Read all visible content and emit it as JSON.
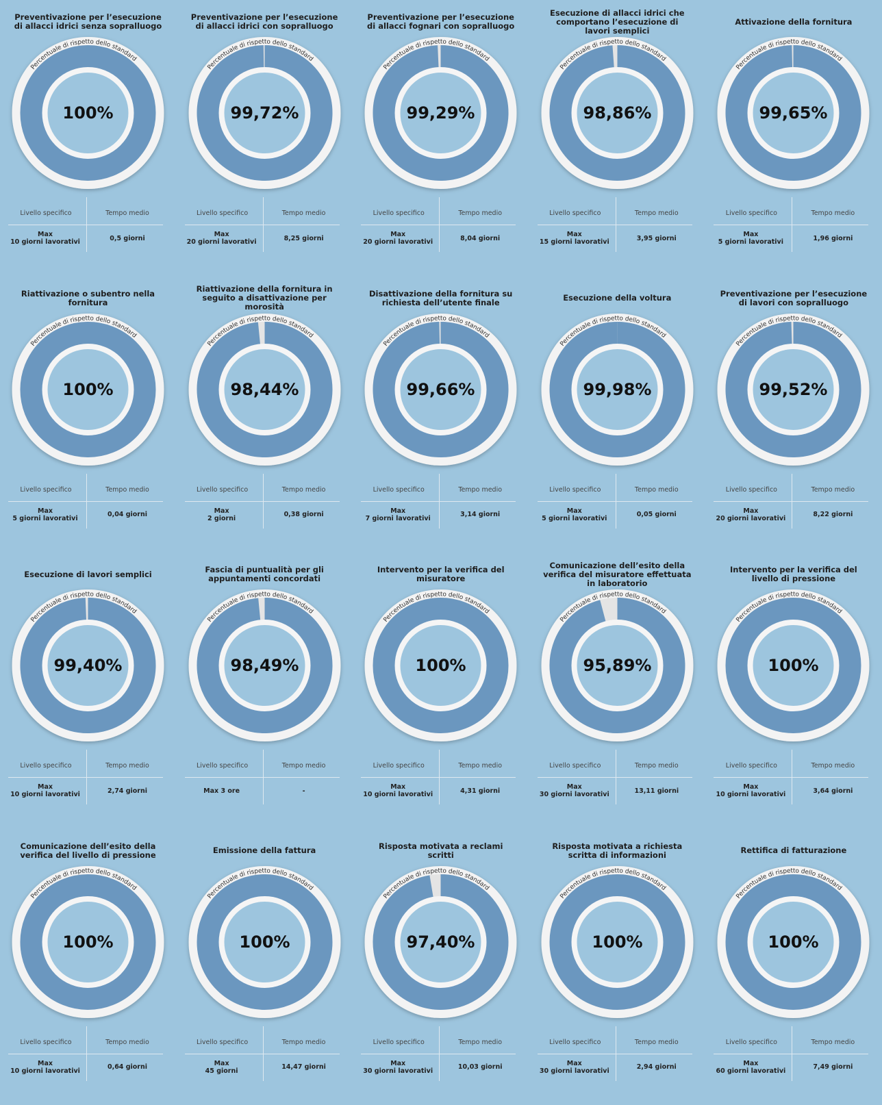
{
  "chart_data": [
    {
      "type": "donut",
      "title": "Preventivazione per l’esecuzione di allacci idrici senza sopralluogo",
      "subtitle": "Percentuale di rispetto dello standard",
      "values": [
        100
      ],
      "value_labels": [
        "100%"
      ],
      "color": "#6b97bf",
      "table": {
        "headers": [
          "Livello specifico",
          "Tempo medio"
        ],
        "cells": [
          [
            "Max",
            "10 giorni lavorativi"
          ],
          [
            "0,5 giorni"
          ]
        ]
      }
    },
    {
      "type": "donut",
      "title": "Preventivazione per l’esecuzione di allacci idrici con sopralluogo",
      "subtitle": "Percentuale di rispetto dello standard",
      "values": [
        99.72
      ],
      "value_labels": [
        "99,72%"
      ],
      "color": "#6b97bf",
      "table": {
        "headers": [
          "Livello specifico",
          "Tempo medio"
        ],
        "cells": [
          [
            "Max",
            "20 giorni lavorativi"
          ],
          [
            "8,25 giorni"
          ]
        ]
      }
    },
    {
      "type": "donut",
      "title": "Preventivazione per l’esecuzione di allacci fognari con sopralluogo",
      "subtitle": "Percentuale di rispetto dello standard",
      "values": [
        99.29
      ],
      "value_labels": [
        "99,29%"
      ],
      "color": "#6b97bf",
      "table": {
        "headers": [
          "Livello specifico",
          "Tempo medio"
        ],
        "cells": [
          [
            "Max",
            "20 giorni lavorativi"
          ],
          [
            "8,04 giorni"
          ]
        ]
      }
    },
    {
      "type": "donut",
      "title": "Esecuzione di allacci idrici che comportano l’esecuzione di lavori semplici",
      "subtitle": "Percentuale di rispetto dello standard",
      "values": [
        98.86
      ],
      "value_labels": [
        "98,86%"
      ],
      "color": "#6b97bf",
      "table": {
        "headers": [
          "Livello specifico",
          "Tempo medio"
        ],
        "cells": [
          [
            "Max",
            "15 giorni lavorativi"
          ],
          [
            "3,95 giorni"
          ]
        ]
      }
    },
    {
      "type": "donut",
      "title": "Attivazione della fornitura",
      "subtitle": "Percentuale di rispetto dello standard",
      "values": [
        99.65
      ],
      "value_labels": [
        "99,65%"
      ],
      "color": "#6b97bf",
      "table": {
        "headers": [
          "Livello specifico",
          "Tempo medio"
        ],
        "cells": [
          [
            "Max",
            "5 giorni lavorativi"
          ],
          [
            "1,96 giorni"
          ]
        ]
      }
    },
    {
      "type": "donut",
      "title": "Riattivazione o subentro nella fornitura",
      "subtitle": "Percentuale di rispetto dello standard",
      "values": [
        100
      ],
      "value_labels": [
        "100%"
      ],
      "color": "#6b97bf",
      "table": {
        "headers": [
          "Livello specifico",
          "Tempo medio"
        ],
        "cells": [
          [
            "Max",
            "5 giorni lavorativi"
          ],
          [
            "0,04 giorni"
          ]
        ]
      }
    },
    {
      "type": "donut",
      "title": "Riattivazione della fornitura in seguito a disattivazione per morosità",
      "subtitle": "Percentuale di rispetto dello standard",
      "values": [
        98.44
      ],
      "value_labels": [
        "98,44%"
      ],
      "color": "#6b97bf",
      "table": {
        "headers": [
          "Livello specifico",
          "Tempo medio"
        ],
        "cells": [
          [
            "Max",
            "2 giorni"
          ],
          [
            "0,38 giorni"
          ]
        ]
      }
    },
    {
      "type": "donut",
      "title": "Disattivazione della fornitura su richiesta dell’utente finale",
      "subtitle": "Percentuale di rispetto dello standard",
      "values": [
        99.66
      ],
      "value_labels": [
        "99,66%"
      ],
      "color": "#6b97bf",
      "table": {
        "headers": [
          "Livello specifico",
          "Tempo medio"
        ],
        "cells": [
          [
            "Max",
            "7 giorni lavorativi"
          ],
          [
            "3,14 giorni"
          ]
        ]
      }
    },
    {
      "type": "donut",
      "title": "Esecuzione della voltura",
      "subtitle": "Percentuale di rispetto dello standard",
      "values": [
        99.98
      ],
      "value_labels": [
        "99,98%"
      ],
      "color": "#6b97bf",
      "table": {
        "headers": [
          "Livello specifico",
          "Tempo medio"
        ],
        "cells": [
          [
            "Max",
            "5 giorni lavorativi"
          ],
          [
            "0,05  giorni"
          ]
        ]
      }
    },
    {
      "type": "donut",
      "title": "Preventivazione per l’esecuzione di lavori con sopralluogo",
      "subtitle": "Percentuale di rispetto dello standard",
      "values": [
        99.52
      ],
      "value_labels": [
        "99,52%"
      ],
      "color": "#6b97bf",
      "table": {
        "headers": [
          "Livello specifico",
          "Tempo medio"
        ],
        "cells": [
          [
            "Max",
            "20 giorni lavorativi"
          ],
          [
            "8,22 giorni"
          ]
        ]
      }
    },
    {
      "type": "donut",
      "title": "Esecuzione di lavori semplici",
      "subtitle": "Percentuale di rispetto dello standard",
      "values": [
        99.4
      ],
      "value_labels": [
        "99,40%"
      ],
      "color": "#6b97bf",
      "table": {
        "headers": [
          "Livello specifico",
          "Tempo medio"
        ],
        "cells": [
          [
            "Max",
            "10 giorni lavorativi"
          ],
          [
            "2,74 giorni"
          ]
        ]
      }
    },
    {
      "type": "donut",
      "title": "Fascia di puntualità per gli appuntamenti concordati",
      "subtitle": "Percentuale di rispetto dello standard",
      "values": [
        98.49
      ],
      "value_labels": [
        "98,49%"
      ],
      "color": "#6b97bf",
      "table": {
        "headers": [
          "Livello specifico",
          "Tempo medio"
        ],
        "cells": [
          [
            "Max 3 ore"
          ],
          [
            "-"
          ]
        ]
      }
    },
    {
      "type": "donut",
      "title": "Intervento per la verifica del misuratore",
      "subtitle": "Percentuale di rispetto dello standard",
      "values": [
        100
      ],
      "value_labels": [
        "100%"
      ],
      "color": "#6b97bf",
      "table": {
        "headers": [
          "Livello specifico",
          "Tempo medio"
        ],
        "cells": [
          [
            "Max",
            "10 giorni lavorativi"
          ],
          [
            "4,31 giorni"
          ]
        ]
      }
    },
    {
      "type": "donut",
      "title": "Comunicazione dell’esito della verifica del misuratore effettuata in laboratorio",
      "subtitle": "Percentuale di rispetto dello standard",
      "values": [
        95.89
      ],
      "value_labels": [
        "95,89%"
      ],
      "color": "#6b97bf",
      "table": {
        "headers": [
          "Livello specifico",
          "Tempo medio"
        ],
        "cells": [
          [
            "Max",
            "30 giorni lavorativi"
          ],
          [
            "13,11 giorni"
          ]
        ]
      }
    },
    {
      "type": "donut",
      "title": "Intervento per la verifica del livello di pressione",
      "subtitle": "Percentuale di rispetto dello standard",
      "values": [
        100
      ],
      "value_labels": [
        "100%"
      ],
      "color": "#6b97bf",
      "table": {
        "headers": [
          "Livello specifico",
          "Tempo medio"
        ],
        "cells": [
          [
            "Max",
            "10 giorni lavorativi"
          ],
          [
            "3,64 giorni"
          ]
        ]
      }
    },
    {
      "type": "donut",
      "title": "Comunicazione dell’esito della verifica del livello di pressione",
      "subtitle": "Percentuale di rispetto dello standard",
      "values": [
        100
      ],
      "value_labels": [
        "100%"
      ],
      "color": "#6b97bf",
      "table": {
        "headers": [
          "Livello specifico",
          "Tempo medio"
        ],
        "cells": [
          [
            "Max",
            "10 giorni lavorativi"
          ],
          [
            "0,64 giorni"
          ]
        ]
      }
    },
    {
      "type": "donut",
      "title": "Emissione della fattura",
      "subtitle": "Percentuale di rispetto dello standard",
      "values": [
        100
      ],
      "value_labels": [
        "100%"
      ],
      "color": "#6b97bf",
      "table": {
        "headers": [
          "Livello specifico",
          "Tempo medio"
        ],
        "cells": [
          [
            "Max",
            "45 giorni"
          ],
          [
            "14,47 giorni"
          ]
        ]
      }
    },
    {
      "type": "donut",
      "title": "Risposta motivata a reclami scritti",
      "subtitle": "Percentuale di rispetto dello standard",
      "values": [
        97.4
      ],
      "value_labels": [
        "97,40%"
      ],
      "color": "#6b97bf",
      "table": {
        "headers": [
          "Livello specifico",
          "Tempo medio"
        ],
        "cells": [
          [
            "Max",
            "30 giorni lavorativi"
          ],
          [
            "10,03 giorni"
          ]
        ]
      }
    },
    {
      "type": "donut",
      "title": "Risposta motivata a richiesta scritta di informazioni",
      "subtitle": "Percentuale di rispetto dello standard",
      "values": [
        100
      ],
      "value_labels": [
        "100%"
      ],
      "color": "#6b97bf",
      "table": {
        "headers": [
          "Livello specifico",
          "Tempo medio"
        ],
        "cells": [
          [
            "Max",
            "30 giorni lavorativi"
          ],
          [
            "2,94 giorni"
          ]
        ]
      }
    },
    {
      "type": "donut",
      "title": "Rettifica di fatturazione",
      "subtitle": "Percentuale di rispetto dello standard",
      "values": [
        100
      ],
      "value_labels": [
        "100%"
      ],
      "color": "#6b97bf",
      "table": {
        "headers": [
          "Livello specifico",
          "Tempo medio"
        ],
        "cells": [
          [
            "Max",
            "60 giorni lavorativi"
          ],
          [
            "7,49 giorni"
          ]
        ]
      }
    }
  ]
}
